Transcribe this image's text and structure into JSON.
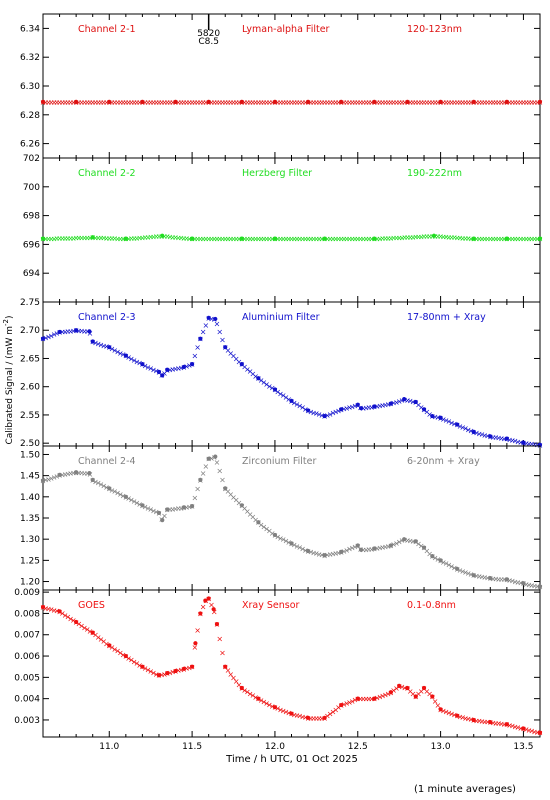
{
  "figure": {
    "ylabel": "Calibrated Signal / (mW m",
    "ylabel_sup": "-2",
    "ylabel_close": ")",
    "xlabel": "Time / h UTC, 01 Oct 2025",
    "footnote": "(1 minute averages)",
    "flare_marker": {
      "line1": "5820",
      "line2": "C8.5",
      "time": 11.6
    }
  },
  "chart_data": [
    {
      "type": "scatter",
      "channel": "Channel 2-1",
      "filter": "Lyman-alpha Filter",
      "band": "120-123nm",
      "color": "#dd1111",
      "ylim": [
        6.25,
        6.35
      ],
      "yticks": [
        "6.26",
        "6.28",
        "6.30",
        "6.32",
        "6.34"
      ],
      "xlim": [
        10.6,
        13.6
      ],
      "x": [
        10.6,
        10.8,
        11.0,
        11.2,
        11.4,
        11.6,
        11.8,
        12.0,
        12.2,
        12.4,
        12.6,
        12.8,
        13.0,
        13.2,
        13.4,
        13.6
      ],
      "y": [
        6.289,
        6.289,
        6.289,
        6.289,
        6.289,
        6.289,
        6.289,
        6.289,
        6.289,
        6.289,
        6.289,
        6.289,
        6.289,
        6.289,
        6.289,
        6.289
      ]
    },
    {
      "type": "scatter",
      "channel": "Channel 2-2",
      "filter": "Herzberg Filter",
      "band": "190-222nm",
      "color": "#22dd22",
      "ylim": [
        692,
        702
      ],
      "yticks": [
        "694",
        "696",
        "698",
        "700",
        "702"
      ],
      "xlim": [
        10.6,
        13.6
      ],
      "x": [
        10.6,
        10.9,
        11.1,
        11.32,
        11.5,
        11.8,
        12.0,
        12.3,
        12.6,
        12.96,
        13.2,
        13.4,
        13.6
      ],
      "y": [
        696.4,
        696.5,
        696.4,
        696.6,
        696.4,
        696.4,
        696.4,
        696.4,
        696.4,
        696.6,
        696.4,
        696.4,
        696.4
      ]
    },
    {
      "type": "scatter",
      "channel": "Channel 2-3",
      "filter": "Aluminium Filter",
      "band": "17-80nm + Xray",
      "color": "#1111cc",
      "ylim": [
        2.495,
        2.75
      ],
      "yticks": [
        "2.50",
        "2.55",
        "2.60",
        "2.65",
        "2.70",
        "2.75"
      ],
      "xlim": [
        10.6,
        13.6
      ],
      "x": [
        10.6,
        10.7,
        10.8,
        10.88,
        10.9,
        11.0,
        11.1,
        11.2,
        11.3,
        11.32,
        11.35,
        11.45,
        11.5,
        11.55,
        11.6,
        11.64,
        11.7,
        11.8,
        11.9,
        12.0,
        12.1,
        12.2,
        12.3,
        12.4,
        12.5,
        12.52,
        12.6,
        12.7,
        12.78,
        12.85,
        12.9,
        12.95,
        13.0,
        13.1,
        13.2,
        13.3,
        13.4,
        13.5,
        13.6
      ],
      "y": [
        2.685,
        2.697,
        2.7,
        2.698,
        2.68,
        2.67,
        2.655,
        2.64,
        2.626,
        2.62,
        2.63,
        2.635,
        2.64,
        2.685,
        2.722,
        2.72,
        2.67,
        2.64,
        2.615,
        2.595,
        2.575,
        2.558,
        2.548,
        2.56,
        2.568,
        2.562,
        2.565,
        2.57,
        2.578,
        2.573,
        2.56,
        2.548,
        2.545,
        2.533,
        2.52,
        2.512,
        2.508,
        2.501,
        2.497
      ]
    },
    {
      "type": "scatter",
      "channel": "Channel 2-4",
      "filter": "Zirconium Filter",
      "band": "6-20nm + Xray",
      "color": "#808080",
      "ylim": [
        1.18,
        1.52
      ],
      "yticks": [
        "1.20",
        "1.25",
        "1.30",
        "1.35",
        "1.40",
        "1.45",
        "1.50"
      ],
      "xlim": [
        10.6,
        13.6
      ],
      "x": [
        10.6,
        10.7,
        10.8,
        10.88,
        10.9,
        11.0,
        11.1,
        11.2,
        11.3,
        11.32,
        11.35,
        11.45,
        11.5,
        11.55,
        11.6,
        11.64,
        11.7,
        11.8,
        11.9,
        12.0,
        12.1,
        12.2,
        12.3,
        12.4,
        12.5,
        12.52,
        12.6,
        12.7,
        12.78,
        12.85,
        12.9,
        12.95,
        13.0,
        13.1,
        13.2,
        13.3,
        13.4,
        13.5,
        13.6
      ],
      "y": [
        1.438,
        1.452,
        1.458,
        1.456,
        1.44,
        1.42,
        1.4,
        1.38,
        1.362,
        1.345,
        1.37,
        1.375,
        1.378,
        1.44,
        1.49,
        1.495,
        1.42,
        1.38,
        1.34,
        1.31,
        1.29,
        1.272,
        1.262,
        1.27,
        1.285,
        1.275,
        1.278,
        1.285,
        1.3,
        1.295,
        1.28,
        1.26,
        1.25,
        1.23,
        1.215,
        1.208,
        1.205,
        1.196,
        1.188
      ]
    },
    {
      "type": "scatter",
      "channel": "GOES",
      "filter": "Xray Sensor",
      "band": "0.1-0.8nm",
      "color": "#ee1111",
      "ylim": [
        0.0022,
        0.0091
      ],
      "yticks": [
        "0.003",
        "0.004",
        "0.005",
        "0.006",
        "0.007",
        "0.008",
        "0.009"
      ],
      "xlim": [
        10.6,
        13.6
      ],
      "x": [
        10.6,
        10.7,
        10.8,
        10.9,
        11.0,
        11.1,
        11.2,
        11.3,
        11.35,
        11.4,
        11.45,
        11.5,
        11.52,
        11.55,
        11.58,
        11.6,
        11.63,
        11.65,
        11.7,
        11.8,
        11.9,
        12.0,
        12.1,
        12.2,
        12.3,
        12.4,
        12.5,
        12.6,
        12.7,
        12.75,
        12.8,
        12.85,
        12.9,
        12.95,
        13.0,
        13.1,
        13.2,
        13.3,
        13.4,
        13.5,
        13.6
      ],
      "y": [
        0.0083,
        0.0081,
        0.0076,
        0.0071,
        0.0065,
        0.006,
        0.0055,
        0.0051,
        0.0052,
        0.0053,
        0.0054,
        0.0055,
        0.0066,
        0.008,
        0.0086,
        0.0087,
        0.0082,
        0.0075,
        0.0055,
        0.0045,
        0.004,
        0.0036,
        0.0033,
        0.0031,
        0.0031,
        0.0037,
        0.004,
        0.004,
        0.0043,
        0.0046,
        0.0045,
        0.0041,
        0.0045,
        0.0041,
        0.0035,
        0.0032,
        0.003,
        0.0029,
        0.0028,
        0.0026,
        0.0024
      ]
    }
  ],
  "xaxis": {
    "ticks": [
      11.0,
      11.5,
      12.0,
      12.5,
      13.0,
      13.5
    ],
    "labels": [
      "11.0",
      "11.5",
      "12.0",
      "12.5",
      "13.0",
      "13.5"
    ]
  }
}
